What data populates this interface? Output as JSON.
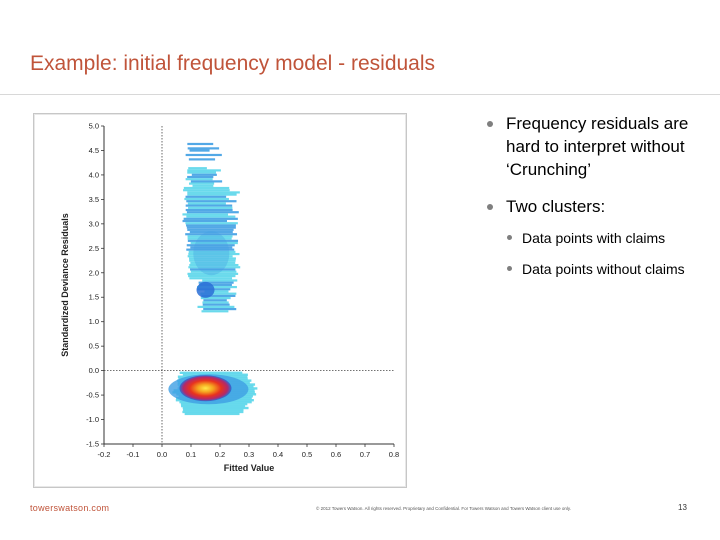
{
  "slide": {
    "title": "Example: initial frequency model - residuals",
    "footer_left": "towerswatson.com",
    "footer_copyright": "© 2012 Towers Watson. All rights reserved. Proprietary and Confidential. For Towers Watson and Towers Watson client use only.",
    "page_number": "13"
  },
  "bullets": {
    "item1": "Frequency residuals are hard to interpret without ‘Crunching’",
    "item2": "Two clusters:",
    "sub1": "Data points with claims",
    "sub2": "Data points without claims"
  },
  "colors": {
    "title": "#c0543a",
    "cluster_light": "#5ad6ea",
    "cluster_mid": "#3f9fe3",
    "cluster_dark": "#2a6fd6",
    "hot_center": "#e8321e"
  },
  "chart_data": {
    "type": "heatmap",
    "xlabel": "Fitted Value",
    "ylabel": "Standardized Deviance Residuals",
    "xlim": [
      -0.2,
      0.8
    ],
    "ylim": [
      -1.5,
      5.0
    ],
    "x_ticks": [
      "-0.2",
      "-0.1",
      "0.0",
      "0.1",
      "0.2",
      "0.3",
      "0.4",
      "0.5",
      "0.6",
      "0.7",
      "0.8"
    ],
    "y_ticks": [
      "5.0",
      "4.5",
      "4.0",
      "3.5",
      "3.0",
      "2.5",
      "2.0",
      "1.5",
      "1.0",
      "0.5",
      "0.0",
      "-0.5",
      "-1.0",
      "-1.5"
    ],
    "reference_lines": {
      "x": 0.0,
      "y": 0.0,
      "style": "dotted"
    },
    "clusters": [
      {
        "name": "with claims",
        "x_range": [
          0.07,
          0.26
        ],
        "y_range": [
          1.2,
          4.7
        ]
      },
      {
        "name": "without claims",
        "x_range": [
          0.03,
          0.33
        ],
        "y_range": [
          -0.9,
          0.0
        ],
        "peak": [
          0.14,
          -0.35
        ]
      }
    ],
    "grid": false
  }
}
